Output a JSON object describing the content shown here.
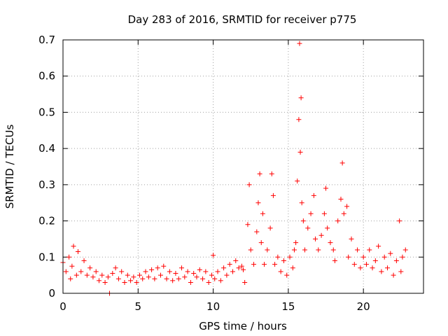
{
  "chart_data": {
    "type": "scatter",
    "title": "Day 283 of 2016, SRMTID for receiver p775",
    "xlabel": "GPS time / hours",
    "ylabel": "SRMTID / TECUs",
    "xlim": [
      0,
      24
    ],
    "ylim": [
      0,
      0.7
    ],
    "xticks": [
      0,
      5,
      10,
      15,
      20
    ],
    "xtick_labels": [
      "0",
      "5",
      "10",
      "15",
      "20"
    ],
    "yticks": [
      0,
      0.1,
      0.2,
      0.3,
      0.4,
      0.5,
      0.6,
      0.7
    ],
    "ytick_labels": [
      "0",
      "0.1",
      "0.2",
      "0.3",
      "0.4",
      "0.5",
      "0.6",
      "0.7"
    ],
    "grid": true,
    "marker": "+",
    "series": [
      {
        "name": "SRMTID",
        "color": "#ff0000",
        "points": [
          [
            0.0,
            0.085
          ],
          [
            0.2,
            0.06
          ],
          [
            0.4,
            0.1
          ],
          [
            0.5,
            0.04
          ],
          [
            0.6,
            0.075
          ],
          [
            0.7,
            0.13
          ],
          [
            0.9,
            0.05
          ],
          [
            1.0,
            0.115
          ],
          [
            1.2,
            0.06
          ],
          [
            1.4,
            0.09
          ],
          [
            1.6,
            0.05
          ],
          [
            1.8,
            0.07
          ],
          [
            2.0,
            0.045
          ],
          [
            2.2,
            0.06
          ],
          [
            2.4,
            0.035
          ],
          [
            2.6,
            0.05
          ],
          [
            2.8,
            0.03
          ],
          [
            3.0,
            0.045
          ],
          [
            3.1,
            0.0
          ],
          [
            3.3,
            0.055
          ],
          [
            3.5,
            0.07
          ],
          [
            3.7,
            0.04
          ],
          [
            3.9,
            0.06
          ],
          [
            4.1,
            0.03
          ],
          [
            4.3,
            0.05
          ],
          [
            4.5,
            0.035
          ],
          [
            4.7,
            0.045
          ],
          [
            4.9,
            0.03
          ],
          [
            5.1,
            0.05
          ],
          [
            5.3,
            0.04
          ],
          [
            5.5,
            0.06
          ],
          [
            5.7,
            0.045
          ],
          [
            5.9,
            0.065
          ],
          [
            6.1,
            0.04
          ],
          [
            6.3,
            0.07
          ],
          [
            6.5,
            0.05
          ],
          [
            6.7,
            0.075
          ],
          [
            6.9,
            0.04
          ],
          [
            7.1,
            0.06
          ],
          [
            7.3,
            0.035
          ],
          [
            7.5,
            0.055
          ],
          [
            7.7,
            0.04
          ],
          [
            7.9,
            0.07
          ],
          [
            8.1,
            0.045
          ],
          [
            8.3,
            0.06
          ],
          [
            8.5,
            0.03
          ],
          [
            8.7,
            0.055
          ],
          [
            8.9,
            0.045
          ],
          [
            9.1,
            0.065
          ],
          [
            9.3,
            0.04
          ],
          [
            9.5,
            0.06
          ],
          [
            9.7,
            0.03
          ],
          [
            9.9,
            0.05
          ],
          [
            10.0,
            0.105
          ],
          [
            10.1,
            0.04
          ],
          [
            10.3,
            0.06
          ],
          [
            10.5,
            0.035
          ],
          [
            10.7,
            0.07
          ],
          [
            10.9,
            0.05
          ],
          [
            11.1,
            0.08
          ],
          [
            11.3,
            0.06
          ],
          [
            11.5,
            0.09
          ],
          [
            11.7,
            0.07
          ],
          [
            11.9,
            0.075
          ],
          [
            12.0,
            0.065
          ],
          [
            12.1,
            0.03
          ],
          [
            12.3,
            0.19
          ],
          [
            12.4,
            0.3
          ],
          [
            12.5,
            0.12
          ],
          [
            12.7,
            0.08
          ],
          [
            12.9,
            0.17
          ],
          [
            13.0,
            0.25
          ],
          [
            13.1,
            0.33
          ],
          [
            13.2,
            0.14
          ],
          [
            13.3,
            0.22
          ],
          [
            13.4,
            0.08
          ],
          [
            13.6,
            0.12
          ],
          [
            13.8,
            0.18
          ],
          [
            13.9,
            0.33
          ],
          [
            14.0,
            0.27
          ],
          [
            14.1,
            0.08
          ],
          [
            14.3,
            0.1
          ],
          [
            14.5,
            0.06
          ],
          [
            14.7,
            0.09
          ],
          [
            14.9,
            0.05
          ],
          [
            15.1,
            0.1
          ],
          [
            15.3,
            0.07
          ],
          [
            15.4,
            0.12
          ],
          [
            15.5,
            0.14
          ],
          [
            15.6,
            0.31
          ],
          [
            15.7,
            0.48
          ],
          [
            15.75,
            0.69
          ],
          [
            15.8,
            0.39
          ],
          [
            15.85,
            0.54
          ],
          [
            15.9,
            0.25
          ],
          [
            16.0,
            0.2
          ],
          [
            16.1,
            0.12
          ],
          [
            16.3,
            0.18
          ],
          [
            16.5,
            0.22
          ],
          [
            16.7,
            0.27
          ],
          [
            16.8,
            0.15
          ],
          [
            17.0,
            0.12
          ],
          [
            17.2,
            0.16
          ],
          [
            17.4,
            0.22
          ],
          [
            17.5,
            0.29
          ],
          [
            17.6,
            0.18
          ],
          [
            17.8,
            0.14
          ],
          [
            18.0,
            0.12
          ],
          [
            18.1,
            0.09
          ],
          [
            18.3,
            0.2
          ],
          [
            18.5,
            0.26
          ],
          [
            18.6,
            0.36
          ],
          [
            18.7,
            0.22
          ],
          [
            18.9,
            0.24
          ],
          [
            19.0,
            0.1
          ],
          [
            19.2,
            0.15
          ],
          [
            19.4,
            0.08
          ],
          [
            19.6,
            0.12
          ],
          [
            19.8,
            0.07
          ],
          [
            20.0,
            0.1
          ],
          [
            20.2,
            0.08
          ],
          [
            20.4,
            0.12
          ],
          [
            20.6,
            0.07
          ],
          [
            20.8,
            0.09
          ],
          [
            21.0,
            0.13
          ],
          [
            21.2,
            0.06
          ],
          [
            21.4,
            0.1
          ],
          [
            21.6,
            0.07
          ],
          [
            21.8,
            0.11
          ],
          [
            22.0,
            0.05
          ],
          [
            22.2,
            0.09
          ],
          [
            22.4,
            0.2
          ],
          [
            22.5,
            0.06
          ],
          [
            22.6,
            0.1
          ],
          [
            22.8,
            0.12
          ]
        ]
      }
    ]
  }
}
